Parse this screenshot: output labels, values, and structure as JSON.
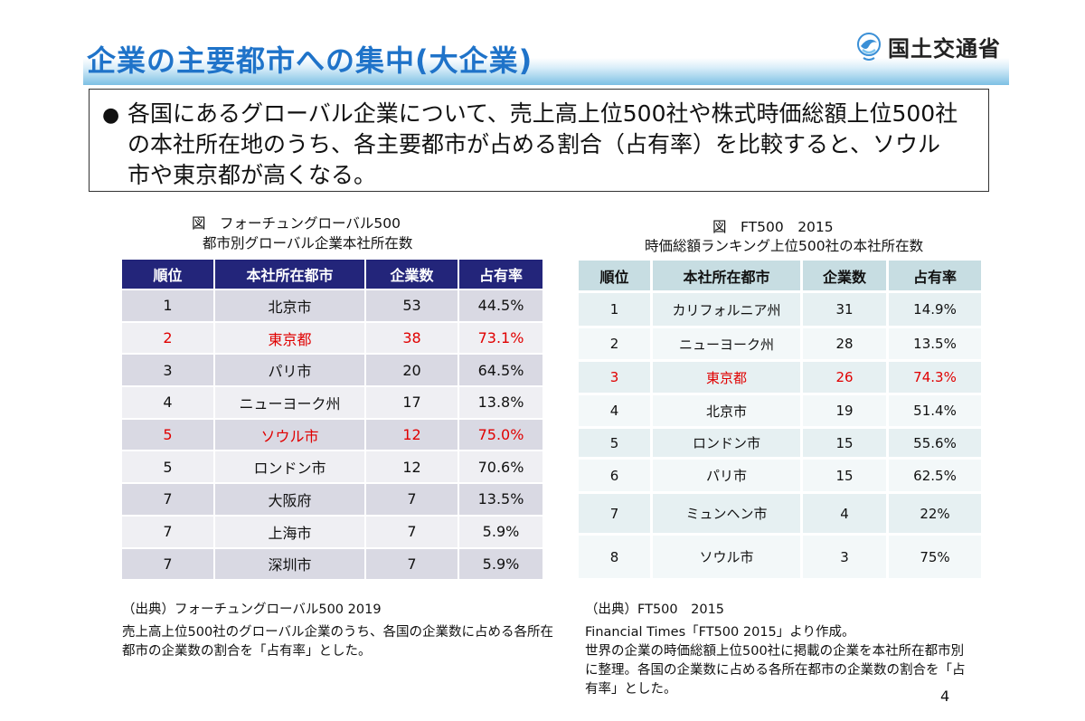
{
  "title": "企業の主要都市への集中(大企業)",
  "ministry": "国土交通省",
  "summary": {
    "bullet": "●",
    "lines": [
      "各国にあるグローバル企業について、売上高上位500社や株式時価総額上位500社",
      "の本社所在地のうち、各主要都市が占める割合（占有率）を比較すると、ソウル",
      "市や東京都が高くなる。"
    ]
  },
  "table1": {
    "caption_line1": "図　フォーチュングローバル500",
    "caption_line2": "都市別グローバル企業本社所在数",
    "headers": [
      "順位",
      "本社所在都市",
      "企業数",
      "占有率"
    ],
    "rows": [
      {
        "rank": "1",
        "city": "北京市",
        "count": "53",
        "share": "44.5%",
        "highlight": false
      },
      {
        "rank": "2",
        "city": "東京都",
        "count": "38",
        "share": "73.1%",
        "highlight": true
      },
      {
        "rank": "3",
        "city": "パリ市",
        "count": "20",
        "share": "64.5%",
        "highlight": false
      },
      {
        "rank": "4",
        "city": "ニューヨーク州",
        "count": "17",
        "share": "13.8%",
        "highlight": false
      },
      {
        "rank": "5",
        "city": "ソウル市",
        "count": "12",
        "share": "75.0%",
        "highlight": true
      },
      {
        "rank": "5",
        "city": "ロンドン市",
        "count": "12",
        "share": "70.6%",
        "highlight": false
      },
      {
        "rank": "7",
        "city": "大阪府",
        "count": "7",
        "share": "13.5%",
        "highlight": false
      },
      {
        "rank": "7",
        "city": "上海市",
        "count": "7",
        "share": "5.9%",
        "highlight": false
      },
      {
        "rank": "7",
        "city": "深圳市",
        "count": "7",
        "share": "5.9%",
        "highlight": false
      }
    ],
    "source_title": "（出典）フォーチュングローバル500 2019",
    "source_lines": [
      "売上高上位500社のグローバル企業のうち、各国の企業数に占める各所在",
      "都市の企業数の割合を「占有率」とした。"
    ]
  },
  "table2": {
    "caption_line1": "図　FT500　2015",
    "caption_line2": "時価総額ランキング上位500社の本社所在数",
    "headers": [
      "順位",
      "本社所在都市",
      "企業数",
      "占有率"
    ],
    "rows": [
      {
        "rank": "1",
        "city": "カリフォルニア州",
        "count": "31",
        "share": "14.9%",
        "highlight": false
      },
      {
        "rank": "2",
        "city": "ニューヨーク州",
        "count": "28",
        "share": "13.5%",
        "highlight": false
      },
      {
        "rank": "3",
        "city": "東京都",
        "count": "26",
        "share": "74.3%",
        "highlight": true
      },
      {
        "rank": "4",
        "city": "北京市",
        "count": "19",
        "share": "51.4%",
        "highlight": false
      },
      {
        "rank": "5",
        "city": "ロンドン市",
        "count": "15",
        "share": "55.6%",
        "highlight": false
      },
      {
        "rank": "6",
        "city": "パリ市",
        "count": "15",
        "share": "62.5%",
        "highlight": false
      },
      {
        "rank": "7",
        "city": "ミュンヘン市",
        "count": "4",
        "share": "22%",
        "highlight": false
      },
      {
        "rank": "8",
        "city": "ソウル市",
        "count": "3",
        "share": "75%",
        "highlight": false
      }
    ],
    "source_title": "（出典）FT500　2015",
    "source_lines": [
      "Financial Times「FT500 2015」より作成。",
      "世界の企業の時価総額上位500社に掲載の企業を本社所在都市別",
      "に整理。各国の企業数に占める各所在都市の企業数の割合を「占",
      "有率」とした。"
    ]
  },
  "page_number": "4",
  "colors": {
    "title": "#1f73c9",
    "highlight": "#e00000",
    "table1_header": "#23257a",
    "table2_header": "#c7dde2"
  }
}
